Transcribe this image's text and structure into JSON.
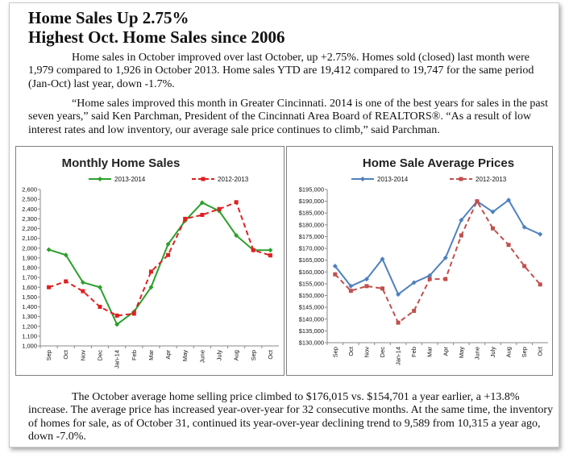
{
  "title_line1": "Home Sales Up 2.75%",
  "title_line2": "Highest Oct. Home Sales since 2006",
  "para1": "Home sales in October improved over last October, up +2.75%. Homes sold (closed) last month were 1,979 compared to 1,926 in October 2013.  Home sales YTD are 19,412 compared to 19,747 for the same period (Jan-Oct) last year, down -1.7%.",
  "para2": "“Home sales improved this month in Greater Cincinnati. 2014 is one of the best years for sales in the past seven years,” said Ken Parchman, President of the Cincinnati Area Board of REALTORS®.  “As a result of low interest rates and low inventory, our average sale price continues to climb,” said Parchman.",
  "para3": "The October average home selling price climbed to $176,015 vs. $154,701 a year earlier, a +13.8% increase.  The average price has increased year-over-year for 32 consecutive months.  At the same time, the inventory of homes for sale, as of October 31, continued its year-over-year declining trend to 9,589 from 10,315 a year ago, down -7.0%.",
  "chart_data": [
    {
      "type": "line",
      "title": "Monthly Home Sales",
      "categories": [
        "Sep",
        "Oct",
        "Nov",
        "Dec",
        "Jan-14",
        "Feb",
        "Mar",
        "Apr",
        "May",
        "June",
        "July",
        "Aug",
        "Sep",
        "Oct"
      ],
      "ylim": [
        1000,
        2600
      ],
      "ystep": 100,
      "ytick_labels": [
        "1,000",
        "1,100",
        "1,200",
        "1,300",
        "1,400",
        "1,500",
        "1,600",
        "1,700",
        "1,800",
        "1,900",
        "2,000",
        "2,100",
        "2,200",
        "2,300",
        "2,400",
        "2,500",
        "2,600"
      ],
      "legend_position": "top",
      "grid": false,
      "series": [
        {
          "name": "2013-2014",
          "color": "#2ca02c",
          "dashed": false,
          "marker": "diamond",
          "values": [
            1985,
            1930,
            1650,
            1600,
            1220,
            1350,
            1600,
            2040,
            2280,
            2465,
            2380,
            2130,
            1980,
            1979
          ]
        },
        {
          "name": "2012-2013",
          "color": "#e02020",
          "dashed": true,
          "marker": "square",
          "values": [
            1600,
            1660,
            1560,
            1400,
            1310,
            1330,
            1760,
            1930,
            2300,
            2340,
            2400,
            2470,
            1980,
            1926
          ]
        }
      ]
    },
    {
      "type": "line",
      "title": "Home Sale Average Prices",
      "categories": [
        "Sep",
        "Oct",
        "Nov",
        "Dec",
        "Jan-14",
        "Feb",
        "Mar",
        "Apr",
        "May",
        "June",
        "July",
        "Aug",
        "Sep",
        "Oct"
      ],
      "ylim": [
        130000,
        195000
      ],
      "ystep": 5000,
      "ytick_labels": [
        "$130,000",
        "$135,000",
        "$140,000",
        "$145,000",
        "$150,000",
        "$155,000",
        "$160,000",
        "$165,000",
        "$170,000",
        "$175,000",
        "$180,000",
        "$185,000",
        "$190,000",
        "$195,000"
      ],
      "legend_position": "top",
      "grid": false,
      "series": [
        {
          "name": "2013-2014",
          "color": "#4f81bd",
          "dashed": false,
          "marker": "diamond",
          "values": [
            162500,
            154000,
            157000,
            165500,
            150500,
            155500,
            158500,
            166000,
            182000,
            190000,
            185500,
            190500,
            179000,
            176015
          ]
        },
        {
          "name": "2012-2013",
          "color": "#c0504d",
          "dashed": true,
          "marker": "square",
          "values": [
            159000,
            152000,
            154000,
            153000,
            138500,
            143500,
            157000,
            157000,
            175500,
            190000,
            178500,
            171500,
            162500,
            154701
          ]
        }
      ]
    }
  ]
}
